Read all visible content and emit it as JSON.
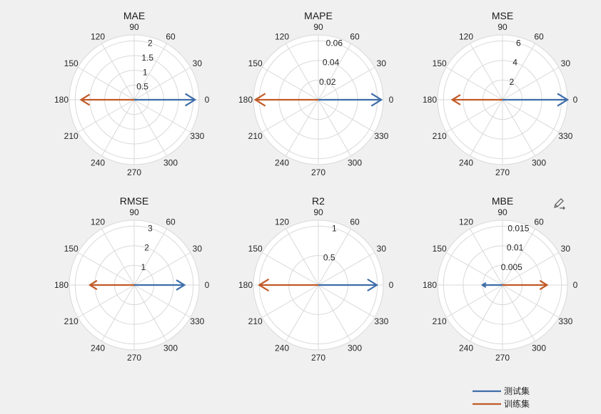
{
  "chart_data": [
    {
      "type": "polar",
      "title": "MAE",
      "angle_ticks": [
        0,
        30,
        60,
        90,
        120,
        150,
        180,
        210,
        240,
        270,
        300,
        330
      ],
      "r_ticks": [
        0.5,
        1,
        1.5,
        2
      ],
      "r_tick_labels": [
        "0.5",
        "1",
        "1.5",
        "2"
      ],
      "rlim": [
        0,
        2.2
      ],
      "series": [
        {
          "name": "测试集",
          "angle": 0,
          "value": 2.06
        },
        {
          "name": "训练集",
          "angle": 180,
          "value": 1.8
        }
      ]
    },
    {
      "type": "polar",
      "title": "MAPE",
      "angle_ticks": [
        0,
        30,
        60,
        90,
        120,
        150,
        180,
        210,
        240,
        270,
        300,
        330
      ],
      "r_ticks": [
        0.02,
        0.04,
        0.06
      ],
      "r_tick_labels": [
        "0.02",
        "0.04",
        "0.06"
      ],
      "rlim": [
        0,
        0.066
      ],
      "series": [
        {
          "name": "测试集",
          "angle": 0,
          "value": 0.064
        },
        {
          "name": "训练集",
          "angle": 180,
          "value": 0.064
        }
      ]
    },
    {
      "type": "polar",
      "title": "MSE",
      "angle_ticks": [
        0,
        30,
        60,
        90,
        120,
        150,
        180,
        210,
        240,
        270,
        300,
        330
      ],
      "r_ticks": [
        2,
        4,
        6
      ],
      "r_tick_labels": [
        "2",
        "4",
        "6"
      ],
      "rlim": [
        0,
        6.6
      ],
      "series": [
        {
          "name": "测试集",
          "angle": 0,
          "value": 6.6
        },
        {
          "name": "训练集",
          "angle": 180,
          "value": 5.1
        }
      ]
    },
    {
      "type": "polar",
      "title": "RMSE",
      "angle_ticks": [
        0,
        30,
        60,
        90,
        120,
        150,
        180,
        210,
        240,
        270,
        300,
        330
      ],
      "r_ticks": [
        1,
        2,
        3
      ],
      "r_tick_labels": [
        "1",
        "2",
        "3"
      ],
      "rlim": [
        0,
        3.3
      ],
      "series": [
        {
          "name": "测试集",
          "angle": 0,
          "value": 2.55
        },
        {
          "name": "训练集",
          "angle": 180,
          "value": 2.25
        }
      ]
    },
    {
      "type": "polar",
      "title": "R2",
      "angle_ticks": [
        0,
        30,
        60,
        90,
        120,
        150,
        180,
        210,
        240,
        270,
        300,
        330
      ],
      "r_ticks": [
        0.5,
        1
      ],
      "r_tick_labels": [
        "0.5",
        "1"
      ],
      "rlim": [
        0,
        1.1
      ],
      "series": [
        {
          "name": "测试集",
          "angle": 0,
          "value": 0.99
        },
        {
          "name": "训练集",
          "angle": 180,
          "value": 1.0
        }
      ]
    },
    {
      "type": "polar",
      "title": "MBE",
      "angle_ticks": [
        0,
        30,
        60,
        90,
        120,
        150,
        180,
        210,
        240,
        270,
        300,
        330
      ],
      "r_ticks": [
        0.005,
        0.01,
        0.015
      ],
      "r_tick_labels": [
        "0.005",
        "0.01",
        "0.015"
      ],
      "rlim": [
        0,
        0.0165
      ],
      "series": [
        {
          "name": "测试集",
          "angle": 180,
          "value": 0.0051
        },
        {
          "name": "训练集",
          "angle": 0,
          "value": 0.0113
        }
      ]
    }
  ],
  "legend": {
    "items": [
      {
        "label": "测试集",
        "color": "#3E6DA8"
      },
      {
        "label": "训练集",
        "color": "#C15A26"
      }
    ]
  },
  "colors": {
    "test": "#3E6DA8",
    "train": "#C15A26",
    "grid": "#D9D9D9"
  },
  "toolbar": {
    "icon": "edit-pen-icon"
  }
}
